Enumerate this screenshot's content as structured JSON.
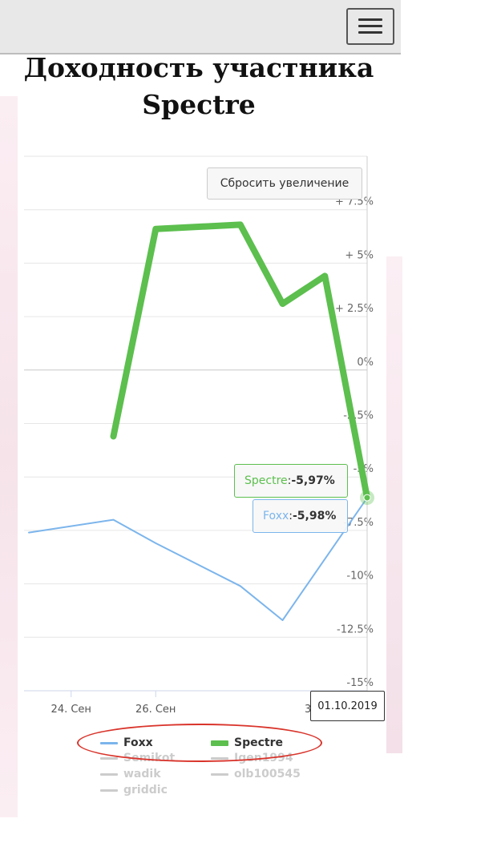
{
  "header": {
    "menu_icon": "hamburger-icon"
  },
  "title": "Доходность участника Spectre",
  "reset_zoom_label": "Сбросить увеличение",
  "colors": {
    "foxx": "#7cb5ec",
    "spectre": "#5cbf4e",
    "hidden": "#cccccc",
    "annotation": "#d9342b"
  },
  "tooltips": [
    {
      "series": "Spectre",
      "sep": ": ",
      "value": "-5,97%"
    },
    {
      "series": "Foxx",
      "sep": ": ",
      "value": "-5,98%"
    }
  ],
  "date_tooltip": "01.10.2019",
  "legend": [
    {
      "name": "Foxx",
      "color": "#7cb5ec",
      "visible": true
    },
    {
      "name": "Spectre",
      "color": "#5cbf4e",
      "visible": true
    },
    {
      "name": "Semikot",
      "color": "#cccccc",
      "visible": false
    },
    {
      "name": "Igen1994",
      "color": "#cccccc",
      "visible": false
    },
    {
      "name": "wadik",
      "color": "#cccccc",
      "visible": false
    },
    {
      "name": "olb100545",
      "color": "#cccccc",
      "visible": false
    },
    {
      "name": "griddic",
      "color": "#cccccc",
      "visible": false
    }
  ],
  "chart_data": {
    "type": "line",
    "title": "Доходность участника Spectre",
    "x": [
      "2019-09-23",
      "2019-09-25",
      "2019-09-26",
      "2019-09-28",
      "2019-09-29",
      "2019-09-30",
      "2019-10-01"
    ],
    "x_tick_labels": [
      "24. Сен",
      "26. Сен",
      "30. Сен"
    ],
    "x_tick_dates": [
      "2019-09-24",
      "2019-09-26",
      "2019-09-30"
    ],
    "xlim": [
      "2019-09-23",
      "2019-10-01"
    ],
    "y_tick_labels": [
      "+ 7.5%",
      "+ 5%",
      "+ 2.5%",
      "0%",
      "-2.5%",
      "-5%",
      "-7.5%",
      "-10%",
      "-12.5%",
      "-15%"
    ],
    "y_ticks": [
      7.5,
      5,
      2.5,
      0,
      -2.5,
      -5,
      -7.5,
      -10,
      -12.5,
      -15
    ],
    "ylim": [
      -15,
      10
    ],
    "grid": true,
    "legend_position": "bottom",
    "series": [
      {
        "name": "Foxx",
        "color": "#7cb5ec",
        "points": [
          [
            "2019-09-23",
            -7.6
          ],
          [
            "2019-09-25",
            -7.0
          ],
          [
            "2019-09-26",
            -8.1
          ],
          [
            "2019-09-28",
            -10.1
          ],
          [
            "2019-09-29",
            -11.7
          ],
          [
            "2019-10-01",
            -5.98
          ]
        ]
      },
      {
        "name": "Spectre",
        "color": "#5cbf4e",
        "points": [
          [
            "2019-09-25",
            -3.1
          ],
          [
            "2019-09-26",
            6.6
          ],
          [
            "2019-09-28",
            6.8
          ],
          [
            "2019-09-29",
            3.1
          ],
          [
            "2019-09-30",
            4.4
          ],
          [
            "2019-10-01",
            -5.97
          ]
        ]
      }
    ],
    "hidden_series": [
      "Semikot",
      "Igen1994",
      "wadik",
      "olb100545",
      "griddic"
    ]
  }
}
